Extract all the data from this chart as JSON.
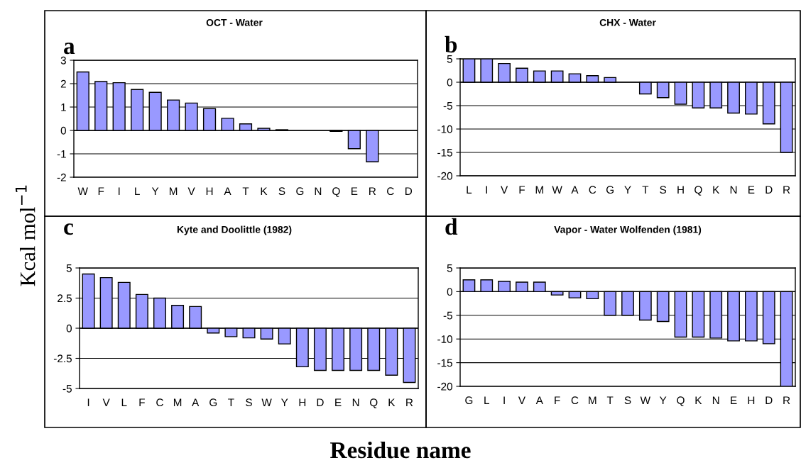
{
  "chart_data": [
    {
      "type": "bar",
      "title": "OCT - Water",
      "annotations": [
        "a"
      ],
      "ylabel": "Kcal mol$^{−1}$",
      "xlabel": "Residue name",
      "categories": [
        "W",
        "F",
        "I",
        "L",
        "Y",
        "M",
        "V",
        "H",
        "A",
        "T",
        "K",
        "S",
        "G",
        "N",
        "Q",
        "E",
        "R",
        "C",
        "D"
      ],
      "series": [
        {
          "color": "#9999ff",
          "values": [
            2.5,
            2.09,
            2.04,
            1.75,
            1.63,
            1.3,
            1.17,
            0.93,
            0.52,
            0.28,
            0.09,
            0.03,
            null,
            null,
            -0.04,
            -0.78,
            -1.34,
            null,
            null
          ]
        }
      ],
      "ylim": [
        -2,
        3
      ],
      "yticks": [
        -2,
        -1,
        0,
        1,
        2,
        3
      ],
      "grid": "y"
    },
    {
      "type": "bar",
      "title": "CHX - Water",
      "annotations": [
        "b"
      ],
      "categories": [
        "L",
        "I",
        "V",
        "F",
        "M",
        "W",
        "A",
        "C",
        "G",
        "Y",
        "T",
        "S",
        "H",
        "Q",
        "K",
        "N",
        "E",
        "D",
        "R"
      ],
      "series": [
        {
          "color": "#9999ff",
          "values": [
            5.0,
            5.0,
            4.0,
            3.0,
            2.4,
            2.4,
            1.8,
            1.4,
            1.0,
            null,
            -2.5,
            -3.3,
            -4.7,
            -5.5,
            -5.5,
            -6.6,
            -6.8,
            -8.9,
            -15.0
          ]
        }
      ],
      "ylim": [
        -20,
        5
      ],
      "yticks": [
        -20,
        -15,
        -10,
        -5,
        0,
        5
      ],
      "grid": "y"
    },
    {
      "type": "bar",
      "title": "Kyte and Doolittle (1982)",
      "annotations": [
        "c"
      ],
      "categories": [
        "I",
        "V",
        "L",
        "F",
        "C",
        "M",
        "A",
        "G",
        "T",
        "S",
        "W",
        "Y",
        "H",
        "D",
        "E",
        "N",
        "Q",
        "K",
        "R"
      ],
      "series": [
        {
          "color": "#9999ff",
          "values": [
            4.5,
            4.2,
            3.8,
            2.8,
            2.5,
            1.9,
            1.8,
            -0.4,
            -0.7,
            -0.8,
            -0.9,
            -1.3,
            -3.2,
            -3.5,
            -3.5,
            -3.5,
            -3.5,
            -3.9,
            -4.5
          ]
        }
      ],
      "ylim": [
        -5,
        5
      ],
      "yticks": [
        -5,
        -2.5,
        0,
        2.5,
        5
      ],
      "grid": "y"
    },
    {
      "type": "bar",
      "title": "Vapor - Water Wolfenden (1981)",
      "annotations": [
        "d"
      ],
      "categories": [
        "G",
        "L",
        "I",
        "V",
        "A",
        "F",
        "C",
        "M",
        "T",
        "S",
        "W",
        "Y",
        "Q",
        "K",
        "N",
        "E",
        "H",
        "D",
        "R"
      ],
      "series": [
        {
          "color": "#9999ff",
          "values": [
            2.5,
            2.5,
            2.2,
            2.0,
            2.0,
            -0.7,
            -1.3,
            -1.5,
            -5.0,
            -5.0,
            -6.0,
            -6.3,
            -9.6,
            -9.6,
            -9.8,
            -10.4,
            -10.4,
            -11.0,
            -20.0
          ]
        }
      ],
      "ylim": [
        -20,
        5
      ],
      "yticks": [
        -20,
        -15,
        -10,
        -5,
        0,
        5
      ],
      "grid": "y"
    }
  ]
}
